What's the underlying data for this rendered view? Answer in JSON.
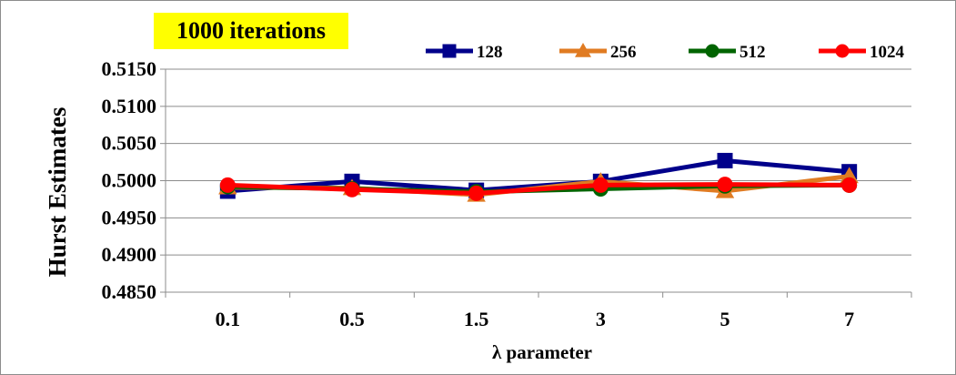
{
  "chart_data": {
    "type": "line",
    "annotation": "1000 iterations",
    "xlabel": "λ parameter",
    "ylabel": "Hurst Estimates",
    "categories": [
      "0.1",
      "0.5",
      "1.5",
      "3",
      "5",
      "7"
    ],
    "ylim": [
      0.485,
      0.515
    ],
    "yticks": [
      0.485,
      0.49,
      0.495,
      0.5,
      0.505,
      0.51,
      0.515
    ],
    "ytick_labels": [
      "0.4850",
      "0.4900",
      "0.4950",
      "0.5000",
      "0.5050",
      "0.5100",
      "0.5150"
    ],
    "grid": "horizontal",
    "legend_position": "top-right",
    "series": [
      {
        "name": "128",
        "color": "#00008b",
        "marker": "square",
        "values": [
          0.4986,
          0.4999,
          0.4987,
          0.4999,
          0.5027,
          0.5012
        ]
      },
      {
        "name": "256",
        "color": "#e07b22",
        "marker": "triangle",
        "values": [
          0.4991,
          0.499,
          0.4981,
          0.4999,
          0.4986,
          0.5006
        ]
      },
      {
        "name": "512",
        "color": "#006400",
        "marker": "circle",
        "values": [
          0.4992,
          0.4989,
          0.4985,
          0.4989,
          0.4993,
          0.4994
        ]
      },
      {
        "name": "1024",
        "color": "#ff0000",
        "marker": "circle",
        "values": [
          0.4994,
          0.4988,
          0.4983,
          0.4994,
          0.4995,
          0.4994
        ]
      }
    ]
  }
}
